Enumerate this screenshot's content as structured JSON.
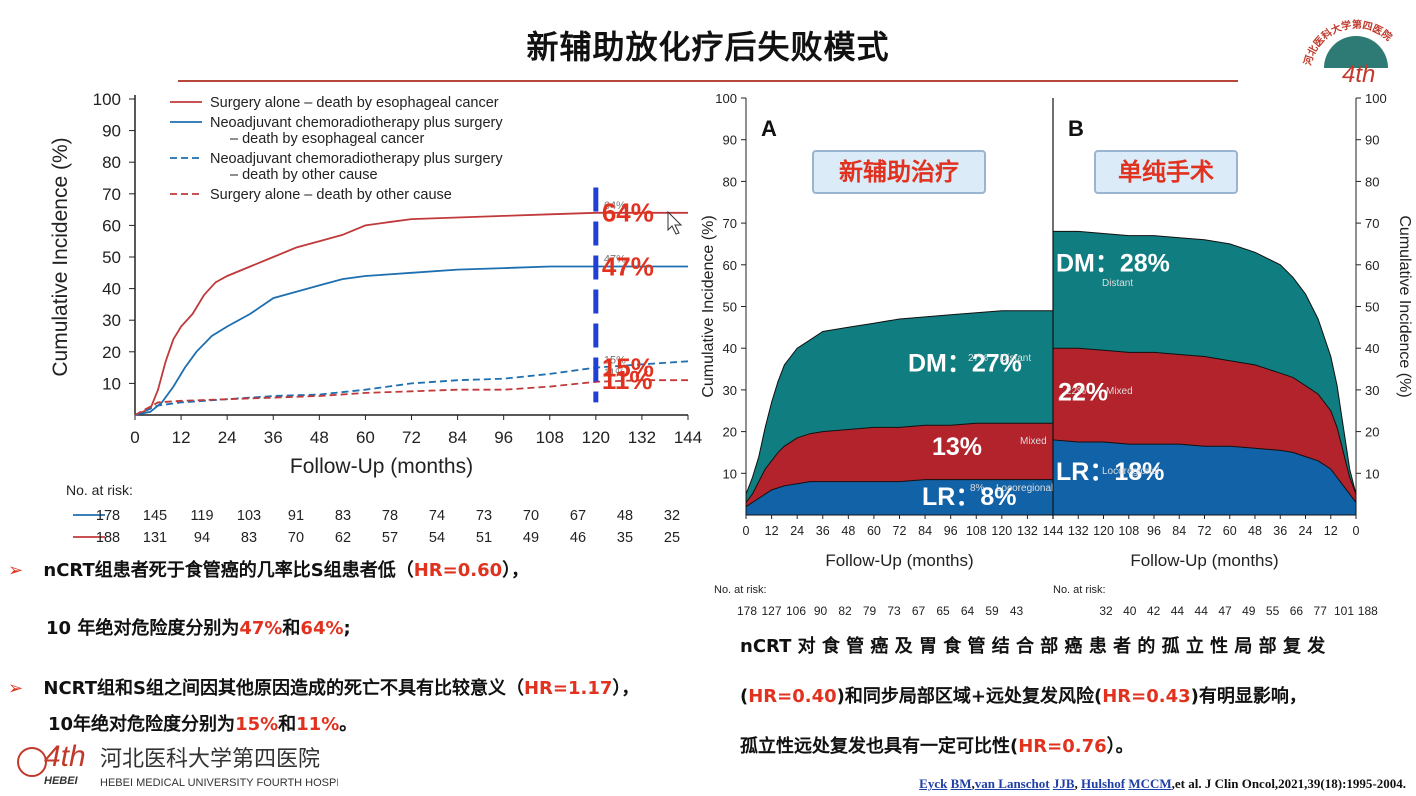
{
  "slide": {
    "title": "新辅助放化疗后失败模式",
    "logo_top": {
      "arc_text": "河北医科大学第四医院",
      "mark": "4th"
    },
    "logo_bottom": {
      "mark": "4th",
      "hebei": "HEBEI",
      "cn": "河北医科大学第四医院",
      "en": "HEBEI MEDICAL UNIVERSITY FOURTH HOSPITAL"
    },
    "bullets": [
      {
        "text": "nCRT组患者死于食管癌的几率比S组患者低（",
        "hr": "HR=0.60",
        "tail": "），"
      },
      {
        "pre": "10 年绝对危险度分别为",
        "v1": "47%",
        "mid": "和",
        "v2": "64%",
        "tail": ";"
      },
      {
        "text": "NCRT组和S组之间因其他原因造成的死亡不具有比较意义（",
        "hr": "HR=1.17",
        "tail": "），"
      },
      {
        "pre": "10年绝对危险度分别为",
        "v1": "15%",
        "mid": "和",
        "v2": "11%",
        "tail": "。"
      }
    ],
    "right_text": [
      {
        "text": "nCRT 对 食 管 癌 及 胃 食 管 结 合 部 癌 患 者 的 孤 立 性 局 部 复 发"
      },
      {
        "p1": "(",
        "hr1": "HR=0.40",
        "p2": ")和同步局部区域+远处复发风险(",
        "hr2": "HR=0.43",
        "p3": ")有明显影响，"
      },
      {
        "p1": "孤立性远处复发也具有一定可比性(",
        "hr": "HR=0.76",
        "p2": "）。"
      }
    ],
    "citation": {
      "a1": "Eyck",
      "a2": "BM",
      "a3": "van Lanschot",
      "a4": "JJB",
      "a5": "Hulshof",
      "a6": "MCCM",
      "rest": ",et al. J Clin Oncol,2021,39(18):1995-2004."
    },
    "colors": {
      "accent_red": "#e0321f",
      "teal": "#107d80",
      "crimson": "#b3232c",
      "blue": "#1262a7"
    }
  },
  "chart_data": [
    {
      "type": "line",
      "xlabel": "Follow-Up (months)",
      "ylabel": "Cumulative Incidence (%)",
      "xlim": [
        0,
        144
      ],
      "ylim": [
        0,
        100
      ],
      "xticks": [
        0,
        12,
        24,
        36,
        48,
        60,
        72,
        84,
        96,
        108,
        120,
        132,
        144
      ],
      "yticks": [
        10,
        20,
        30,
        40,
        50,
        60,
        70,
        80,
        90,
        100
      ],
      "legend": "top-left",
      "series": [
        {
          "name": "Surgery alone – death by esophageal cancer",
          "name_l2": "",
          "color": "#c0393b",
          "style": "solid",
          "x": [
            0,
            4,
            6,
            8,
            10,
            12,
            15,
            18,
            21,
            24,
            30,
            36,
            42,
            48,
            54,
            60,
            66,
            72,
            84,
            96,
            108,
            120,
            132,
            144
          ],
          "y": [
            0,
            2,
            8,
            17,
            24,
            28,
            32,
            38,
            42,
            44,
            47,
            50,
            53,
            55,
            57,
            60,
            61,
            62,
            62.5,
            63,
            63.5,
            64,
            64,
            64
          ]
        },
        {
          "name": "Neoadjuvant chemoradiotherapy plus surgery",
          "name_l2": "– death by esophageal cancer",
          "color": "#1d6fb0",
          "style": "solid",
          "x": [
            0,
            4,
            7,
            10,
            13,
            16,
            20,
            24,
            30,
            36,
            42,
            48,
            54,
            60,
            66,
            72,
            84,
            96,
            108,
            120,
            132,
            144
          ],
          "y": [
            0,
            1,
            4,
            9,
            15,
            20,
            25,
            28,
            32,
            37,
            39,
            41,
            43,
            44,
            44.5,
            45,
            46,
            46.5,
            47,
            47,
            47,
            47
          ]
        },
        {
          "name": "Neoadjuvant chemoradiotherapy plus surgery",
          "name_l2": "– death by other cause",
          "color": "#1d6fb0",
          "style": "dashed",
          "x": [
            0,
            6,
            12,
            24,
            36,
            48,
            60,
            72,
            84,
            96,
            108,
            120,
            132,
            144
          ],
          "y": [
            0,
            3,
            4,
            5,
            6,
            6.5,
            8,
            10,
            11,
            11.5,
            13,
            15,
            16,
            17
          ]
        },
        {
          "name": "Surgery alone – death by other cause",
          "name_l2": "",
          "color": "#c0393b",
          "style": "dashed",
          "x": [
            0,
            6,
            12,
            24,
            36,
            48,
            60,
            72,
            84,
            96,
            108,
            120,
            132,
            144
          ],
          "y": [
            0,
            4,
            4.5,
            5,
            5.5,
            6,
            7,
            7.5,
            8,
            8,
            9,
            10.5,
            11,
            11
          ]
        }
      ],
      "marker_x": 120,
      "small_labels": [
        "64%",
        "47%",
        "15%",
        "11%"
      ],
      "annotations": [
        {
          "text": "64%",
          "y": 64
        },
        {
          "text": "47%",
          "y": 47
        },
        {
          "text": "15%",
          "y": 15
        },
        {
          "text": "11%",
          "y": 11
        }
      ],
      "risk_table": {
        "title": "No. at risk:",
        "rows": [
          {
            "color": "#1d6fb0",
            "values": [
              "178",
              "145",
              "119",
              "103",
              "91",
              "83",
              "78",
              "74",
              "73",
              "70",
              "67",
              "48",
              "32"
            ]
          },
          {
            "color": "#c0393b",
            "values": [
              "188",
              "131",
              "94",
              "83",
              "70",
              "62",
              "57",
              "54",
              "51",
              "49",
              "46",
              "35",
              "25"
            ]
          }
        ]
      }
    },
    {
      "type": "area",
      "ylabel": "Cumulative Incidence (%)",
      "ylabel_right": "Cumulative Incidence (%)",
      "ylim": [
        0,
        100
      ],
      "yticks": [
        10,
        20,
        30,
        40,
        50,
        60,
        70,
        80,
        90,
        100
      ],
      "panels": [
        {
          "letter": "A",
          "tag": "新辅助治疗",
          "xlabel": "Follow-Up (months)",
          "xlim": [
            0,
            144
          ],
          "xticks": [
            0,
            12,
            24,
            36,
            48,
            60,
            72,
            84,
            96,
            108,
            120,
            132,
            144
          ],
          "x": [
            0,
            3,
            6,
            9,
            12,
            15,
            18,
            24,
            30,
            36,
            48,
            60,
            72,
            84,
            96,
            108,
            120,
            132,
            144
          ],
          "series": [
            {
              "name": "Locoregional",
              "color": "#1262a7",
              "y": [
                2,
                3,
                4,
                5,
                6,
                6.5,
                7,
                7.5,
                8,
                8,
                8,
                8,
                8,
                8.5,
                8.5,
                8.5,
                8.5,
                8.5,
                8.5
              ]
            },
            {
              "name": "Mixed",
              "color": "#b3232c",
              "y": [
                3,
                5,
                8,
                11,
                13,
                15,
                16.5,
                18.5,
                19.5,
                20,
                20.5,
                21,
                21,
                21.5,
                21.5,
                22,
                22,
                22,
                22
              ]
            },
            {
              "name": "Distant",
              "color": "#107d80",
              "y": [
                5,
                9,
                14,
                21,
                27,
                32,
                36,
                40,
                42,
                44,
                45,
                46,
                47,
                47.5,
                48,
                48.5,
                49,
                49,
                49
              ]
            }
          ],
          "small_labels": [
            "27%",
            "Distant",
            "Mixed",
            "8%",
            "Locoregional"
          ],
          "labels": [
            {
              "text": "DM：27%",
              "series": "Distant"
            },
            {
              "text": "13%",
              "series": "Mixed"
            },
            {
              "text": "LR：8%",
              "series": "Locoregional"
            }
          ],
          "risk": {
            "title": "No. at risk:",
            "values": [
              "178",
              "127",
              "106",
              "90",
              "82",
              "79",
              "73",
              "67",
              "65",
              "64",
              "59",
              "43"
            ]
          }
        },
        {
          "letter": "B",
          "tag": "单纯手术",
          "xlabel": "Follow-Up (months)",
          "xlim": [
            144,
            0
          ],
          "reversed": true,
          "xticks": [
            144,
            132,
            120,
            108,
            96,
            84,
            72,
            60,
            48,
            36,
            24,
            12,
            0
          ],
          "x": [
            144,
            132,
            120,
            108,
            96,
            84,
            72,
            60,
            48,
            36,
            30,
            24,
            18,
            12,
            9,
            6,
            3,
            0
          ],
          "series": [
            {
              "name": "Locoregional",
              "color": "#1262a7",
              "y": [
                18,
                17.5,
                17.5,
                17,
                17,
                17,
                16.5,
                16.5,
                16,
                15.5,
                15,
                14,
                13,
                11,
                9,
                7,
                5,
                3
              ]
            },
            {
              "name": "Mixed",
              "color": "#b3232c",
              "y": [
                40,
                40,
                39.5,
                39,
                39,
                38.5,
                38,
                37,
                36,
                34,
                33,
                31,
                29,
                25,
                21,
                15,
                9,
                5
              ]
            },
            {
              "name": "Distant",
              "color": "#107d80",
              "y": [
                68,
                68,
                67.5,
                67,
                67,
                66.5,
                66,
                65,
                63,
                60,
                57,
                53,
                47,
                38,
                31,
                21,
                11,
                5
              ]
            }
          ],
          "small_labels": [
            "Distant",
            "22%",
            "Mixed",
            "Locoregional"
          ],
          "labels": [
            {
              "text": "DM：28%",
              "series": "Distant"
            },
            {
              "text": "22%",
              "series": "Mixed"
            },
            {
              "text": "LR：18%",
              "series": "Locoregional"
            }
          ],
          "risk": {
            "title": "No. at risk:",
            "values": [
              "32",
              "40",
              "42",
              "44",
              "44",
              "47",
              "49",
              "55",
              "66",
              "77",
              "101",
              "188"
            ]
          }
        }
      ]
    }
  ]
}
